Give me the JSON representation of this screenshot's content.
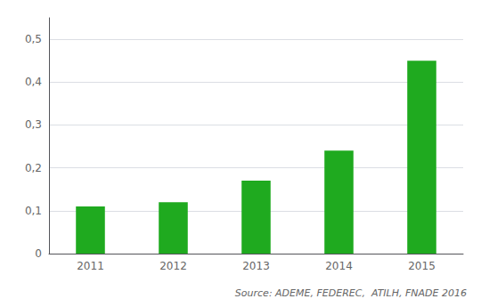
{
  "chart_data": {
    "type": "bar",
    "categories": [
      "2011",
      "2012",
      "2013",
      "2014",
      "2015"
    ],
    "values": [
      0.11,
      0.12,
      0.17,
      0.24,
      0.45
    ],
    "color": "#1faa1f",
    "ylim": [
      0,
      0.55
    ],
    "yticks": [
      0,
      {
        "value": 0.1,
        "label": "0,1"
      },
      {
        "value": 0.2,
        "label": "0,2"
      },
      {
        "value": 0.3,
        "label": "0,3"
      },
      {
        "value": 0.4,
        "label": "0,4"
      },
      {
        "value": 0.5,
        "label": "0,5"
      }
    ],
    "grid": true,
    "annotation": "Source: ADEME, FEDEREC,  ATILH, FNADE 2016"
  }
}
